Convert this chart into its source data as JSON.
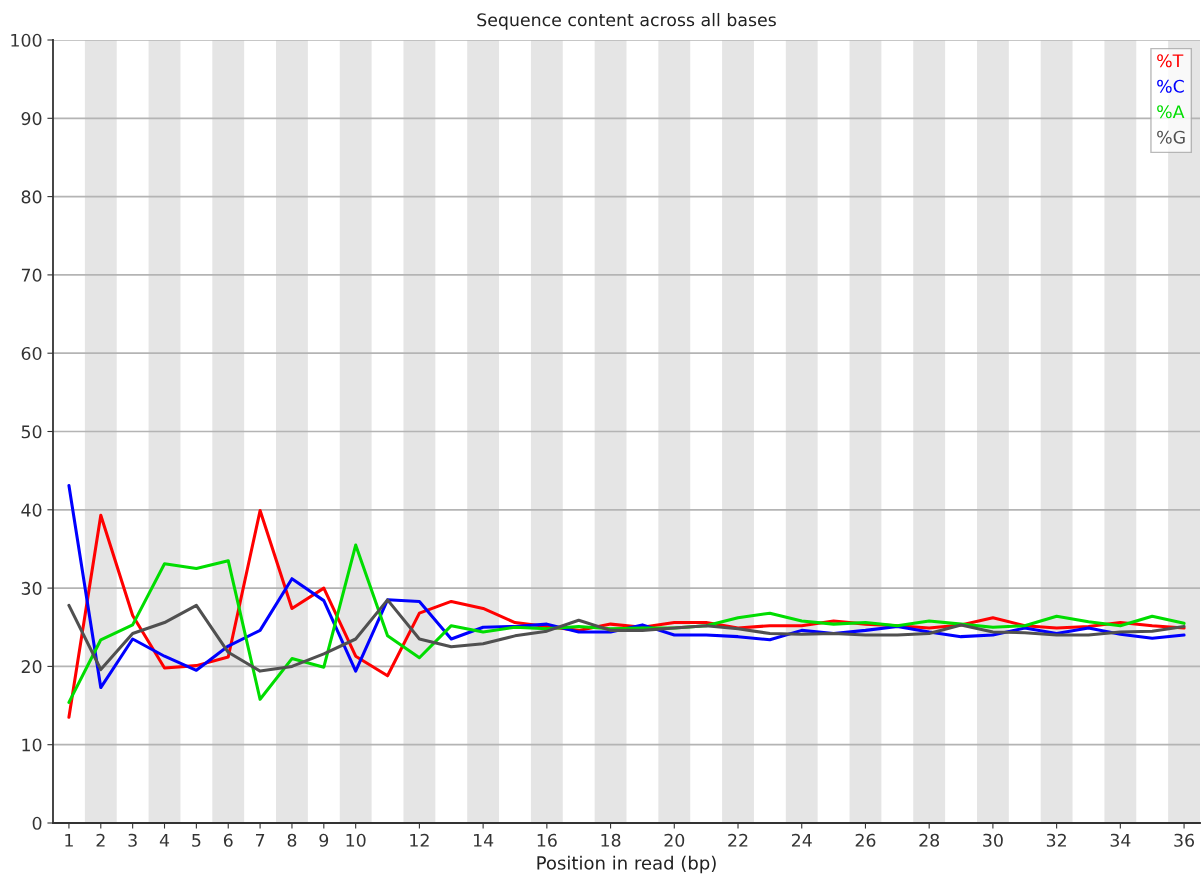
{
  "chart_data": {
    "type": "line",
    "title": "Sequence content across all bases",
    "xlabel": "Position in read (bp)",
    "x": [
      1,
      2,
      3,
      4,
      5,
      6,
      7,
      8,
      9,
      10,
      11,
      12,
      13,
      14,
      15,
      16,
      17,
      18,
      19,
      20,
      21,
      22,
      23,
      24,
      25,
      26,
      27,
      28,
      29,
      30,
      31,
      32,
      33,
      34,
      35,
      36
    ],
    "series": [
      {
        "name": "%T",
        "color": "#ff0000",
        "values": [
          13.5,
          39.3,
          26.5,
          19.8,
          20.1,
          21.2,
          39.9,
          27.4,
          30.0,
          21.3,
          18.8,
          26.8,
          28.3,
          27.4,
          25.6,
          25.1,
          24.6,
          25.4,
          25.0,
          25.6,
          25.6,
          24.9,
          25.2,
          25.2,
          25.8,
          25.4,
          25.2,
          24.9,
          25.3,
          26.2,
          25.2,
          24.9,
          25.1,
          25.6,
          25.2,
          24.9
        ]
      },
      {
        "name": "%C",
        "color": "#0000ff",
        "values": [
          43.1,
          17.3,
          23.5,
          21.3,
          19.5,
          22.6,
          24.6,
          31.2,
          28.4,
          19.4,
          28.5,
          28.3,
          23.5,
          25.0,
          25.1,
          25.4,
          24.4,
          24.4,
          25.3,
          24.0,
          24.0,
          23.8,
          23.4,
          24.6,
          24.2,
          24.6,
          25.1,
          24.4,
          23.8,
          24.0,
          24.9,
          24.2,
          24.9,
          24.1,
          23.6,
          24.0
        ]
      },
      {
        "name": "%A",
        "color": "#00dd00",
        "values": [
          15.4,
          23.4,
          25.3,
          33.1,
          32.5,
          33.5,
          15.8,
          21.0,
          19.9,
          35.5,
          23.9,
          21.1,
          25.2,
          24.4,
          25.0,
          24.8,
          25.1,
          24.8,
          24.9,
          24.9,
          25.2,
          26.2,
          26.8,
          25.8,
          25.4,
          25.6,
          25.2,
          25.8,
          25.4,
          25.0,
          25.2,
          26.4,
          25.7,
          25.2,
          26.4,
          25.5
        ]
      },
      {
        "name": "%G",
        "color": "#505050",
        "values": [
          27.8,
          19.6,
          24.2,
          25.6,
          27.8,
          21.8,
          19.4,
          20.0,
          21.6,
          23.5,
          28.5,
          23.5,
          22.5,
          22.9,
          23.9,
          24.5,
          25.9,
          24.6,
          24.6,
          24.9,
          25.2,
          24.8,
          24.2,
          24.1,
          24.2,
          24.0,
          24.0,
          24.2,
          25.3,
          24.4,
          24.3,
          24.0,
          24.0,
          24.4,
          24.5,
          25.1
        ]
      }
    ],
    "xlim": [
      0.5,
      36.5
    ],
    "xticks": [
      1,
      2,
      3,
      4,
      5,
      6,
      7,
      8,
      9,
      10,
      12,
      14,
      16,
      18,
      20,
      22,
      24,
      26,
      28,
      30,
      32,
      34,
      36
    ],
    "ylim": [
      0,
      100
    ],
    "yticks": [
      0,
      10,
      20,
      30,
      40,
      50,
      60,
      70,
      80,
      90,
      100
    ],
    "bands": [
      {
        "axis": "x",
        "from": 1.5,
        "to": 2.5,
        "color": "#e5e5e5"
      },
      {
        "axis": "x",
        "from": 3.5,
        "to": 4.5,
        "color": "#e5e5e5"
      },
      {
        "axis": "x",
        "from": 5.5,
        "to": 6.5,
        "color": "#e5e5e5"
      },
      {
        "axis": "x",
        "from": 7.5,
        "to": 8.5,
        "color": "#e5e5e5"
      },
      {
        "axis": "x",
        "from": 9.5,
        "to": 10.5,
        "color": "#e5e5e5"
      },
      {
        "axis": "x",
        "from": 11.5,
        "to": 12.5,
        "color": "#e5e5e5"
      },
      {
        "axis": "x",
        "from": 13.5,
        "to": 14.5,
        "color": "#e5e5e5"
      },
      {
        "axis": "x",
        "from": 15.5,
        "to": 16.5,
        "color": "#e5e5e5"
      },
      {
        "axis": "x",
        "from": 17.5,
        "to": 18.5,
        "color": "#e5e5e5"
      },
      {
        "axis": "x",
        "from": 19.5,
        "to": 20.5,
        "color": "#e5e5e5"
      },
      {
        "axis": "x",
        "from": 21.5,
        "to": 22.5,
        "color": "#e5e5e5"
      },
      {
        "axis": "x",
        "from": 23.5,
        "to": 24.5,
        "color": "#e5e5e5"
      },
      {
        "axis": "x",
        "from": 25.5,
        "to": 26.5,
        "color": "#e5e5e5"
      },
      {
        "axis": "x",
        "from": 27.5,
        "to": 28.5,
        "color": "#e5e5e5"
      },
      {
        "axis": "x",
        "from": 29.5,
        "to": 30.5,
        "color": "#e5e5e5"
      },
      {
        "axis": "x",
        "from": 31.5,
        "to": 32.5,
        "color": "#e5e5e5"
      },
      {
        "axis": "x",
        "from": 33.5,
        "to": 34.5,
        "color": "#e5e5e5"
      },
      {
        "axis": "x",
        "from": 35.5,
        "to": 36.5,
        "color": "#e5e5e5"
      }
    ],
    "grid": "y",
    "legend": "top right",
    "marker": "none",
    "line_style": "solid"
  }
}
